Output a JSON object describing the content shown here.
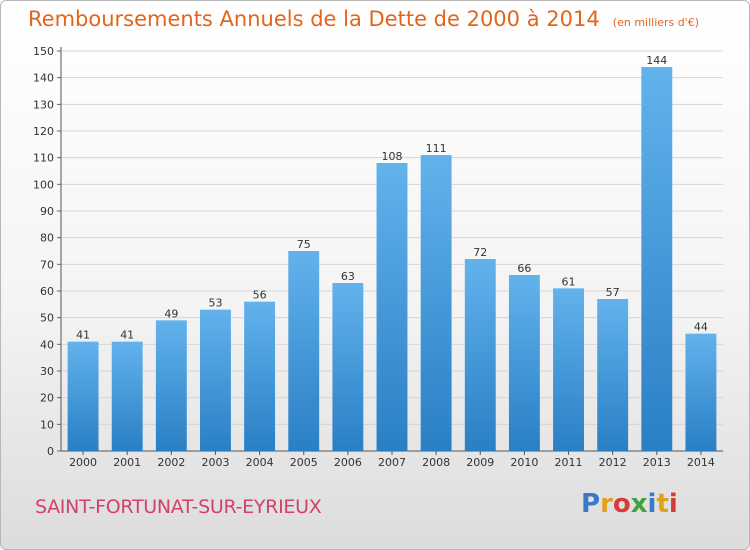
{
  "title": "Remboursements Annuels de la Dette de 2000 à 2014",
  "subtitle": "(en milliers d'€)",
  "commune": "SAINT-FORTUNAT-SUR-EYRIEUX",
  "logo": {
    "text": "Proxiti",
    "letter_colors": [
      "#3a79c9",
      "#e0a21c",
      "#d53d3a",
      "#3fa33f",
      "#3a79c9",
      "#e0a21c",
      "#d53d3a"
    ]
  },
  "colors": {
    "bar_light": "#62b2ec",
    "bar_dark": "#2a7fc4",
    "title": "#e2651d",
    "commune": "#d3406a"
  },
  "chart_data": {
    "type": "bar",
    "title": "Remboursements Annuels de la Dette de 2000 à 2014",
    "subtitle": "(en milliers d'€)",
    "categories": [
      "2000",
      "2001",
      "2002",
      "2003",
      "2004",
      "2005",
      "2006",
      "2007",
      "2008",
      "2009",
      "2010",
      "2011",
      "2012",
      "2013",
      "2014"
    ],
    "values": [
      41,
      41,
      49,
      53,
      56,
      75,
      63,
      108,
      111,
      72,
      66,
      61,
      57,
      144,
      44
    ],
    "ylim": [
      0,
      150
    ],
    "yticks": [
      0,
      10,
      20,
      30,
      40,
      50,
      60,
      70,
      80,
      90,
      100,
      110,
      120,
      130,
      140,
      150
    ],
    "grid": true,
    "data_labels": true
  }
}
